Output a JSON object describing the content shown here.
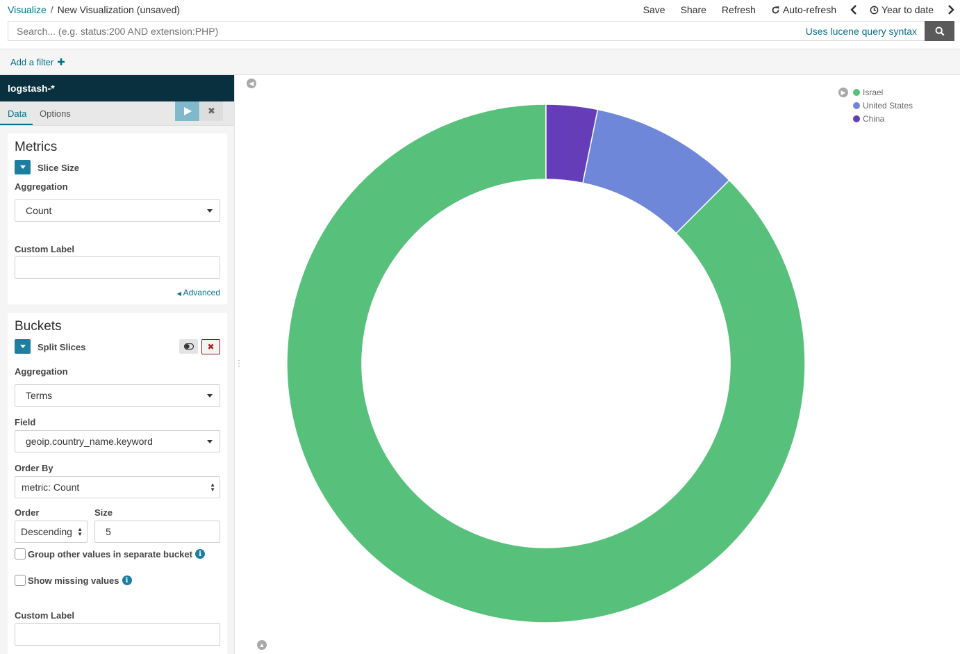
{
  "breadcrumb": {
    "root": "Visualize",
    "separator": "/",
    "current": "New Visualization (unsaved)"
  },
  "menu": {
    "save": "Save",
    "share": "Share",
    "refresh": "Refresh",
    "auto_refresh": "Auto-refresh",
    "time_range": "Year to date"
  },
  "search": {
    "placeholder": "Search... (e.g. status:200 AND extension:PHP)",
    "syntax_link": "Uses lucene query syntax"
  },
  "filter": {
    "add_label": "Add a filter"
  },
  "sidebar": {
    "index_pattern": "logstash-*",
    "tabs": [
      "Data",
      "Options"
    ],
    "metrics": {
      "title": "Metrics",
      "agg_name": "Slice Size",
      "aggregation_label": "Aggregation",
      "aggregation_value": "Count",
      "custom_label": "Custom Label",
      "custom_label_value": "",
      "advanced": "Advanced"
    },
    "buckets": {
      "title": "Buckets",
      "agg_name": "Split Slices",
      "aggregation_label": "Aggregation",
      "aggregation_value": "Terms",
      "field_label": "Field",
      "field_value": "geoip.country_name.keyword",
      "order_by_label": "Order By",
      "order_by_value": "metric: Count",
      "order_label": "Order",
      "order_value": "Descending",
      "size_label": "Size",
      "size_value": "5",
      "group_other": "Group other values in separate bucket",
      "show_missing": "Show missing values",
      "custom_label": "Custom Label",
      "custom_label_value": ""
    }
  },
  "colors": {
    "israel": "#57c17b",
    "united_states": "#6f87d8",
    "china": "#663db8"
  },
  "chart_data": {
    "type": "pie",
    "donut": true,
    "legend_position": "top-right",
    "labels": [
      "Israel",
      "United States",
      "China"
    ],
    "values": [
      87.5,
      9.3,
      3.2
    ],
    "colors": [
      "#57c17b",
      "#6f87d8",
      "#663db8"
    ]
  }
}
